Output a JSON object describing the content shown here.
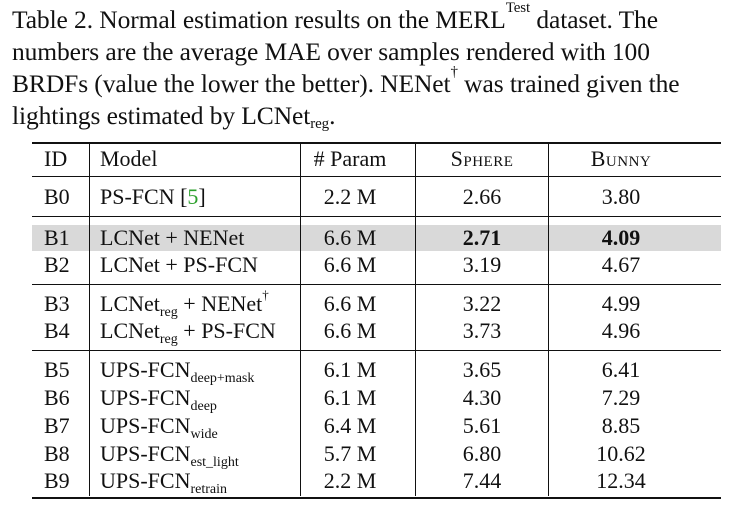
{
  "caption": {
    "line1": {
      "a": "Table 2.",
      "b": "Normal",
      "c": "estimation",
      "d": "results",
      "e": "on",
      "f": "the",
      "g": "MERL",
      "g_sup": "Test",
      "h": "dataset.",
      "i": "The"
    },
    "line2": "numbers are the average MAE over samples rendered with 100",
    "line3_pre": "BRDFs (value the lower the better). NENet",
    "line3_sup": "†",
    "line3_post": " was trained given the",
    "line4_pre": "lightings estimated by LCNet",
    "line4_sub": "reg",
    "line4_post": "."
  },
  "table": {
    "headers": {
      "id": "ID",
      "model": "Model",
      "param": "# Param",
      "sphere": "Sphere",
      "bunny": "Bunny"
    },
    "rows": [
      {
        "id": "B0",
        "model": "PS-FCN [",
        "cite": "5",
        "model_post": "]",
        "param": "2.2 M",
        "sphere": "2.66",
        "bunny": "3.80"
      },
      {
        "id": "B1",
        "model": "LCNet + NENet",
        "param": "6.6 M",
        "sphere": "2.71",
        "bunny": "4.09",
        "best": true
      },
      {
        "id": "B2",
        "model": "LCNet + PS-FCN",
        "param": "6.6 M",
        "sphere": "3.19",
        "bunny": "4.67"
      },
      {
        "id": "B3",
        "model_a": "LCNet",
        "model_sub": "reg",
        "model_b": " + NENet",
        "model_sup": "†",
        "param": "6.6 M",
        "sphere": "3.22",
        "bunny": "4.99"
      },
      {
        "id": "B4",
        "model_a": "LCNet",
        "model_sub": "reg",
        "model_b": " + PS-FCN",
        "param": "6.6 M",
        "sphere": "3.73",
        "bunny": "4.96"
      },
      {
        "id": "B5",
        "model_a": "UPS-FCN",
        "model_sub": "deep+mask",
        "param": "6.1 M",
        "sphere": "3.65",
        "bunny": "6.41"
      },
      {
        "id": "B6",
        "model_a": "UPS-FCN",
        "model_sub": "deep",
        "param": "6.1 M",
        "sphere": "4.30",
        "bunny": "7.29"
      },
      {
        "id": "B7",
        "model_a": "UPS-FCN",
        "model_sub": "wide",
        "param": "6.4 M",
        "sphere": "5.61",
        "bunny": "8.85"
      },
      {
        "id": "B8",
        "model_a": "UPS-FCN",
        "model_sub": "est_light",
        "param": "5.7 M",
        "sphere": "6.80",
        "bunny": "10.62"
      },
      {
        "id": "B9",
        "model_a": "UPS-FCN",
        "model_sub": "retrain",
        "param": "2.2 M",
        "sphere": "7.44",
        "bunny": "12.34"
      }
    ]
  }
}
